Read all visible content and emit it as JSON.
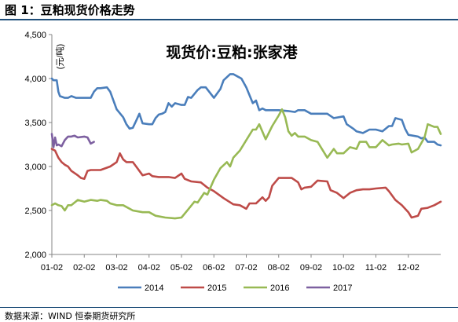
{
  "header": {
    "figure_title": "图 1：豆粕现货价格走势"
  },
  "footer": {
    "source": "数据来源：WIND 恒泰期货研究所"
  },
  "chart_data": {
    "type": "line",
    "title": "现货价:豆粕:张家港",
    "ylabel": "(元/吨)",
    "xlabel": "",
    "ylim": [
      2000,
      4500
    ],
    "yticks": [
      2000,
      2500,
      3000,
      3500,
      4000,
      4500
    ],
    "ytick_labels": [
      "2,000",
      "2,500",
      "3,000",
      "3,500",
      "4,000",
      "4,500"
    ],
    "xlim": [
      0,
      12
    ],
    "xticks": [
      0,
      1,
      2,
      3,
      4,
      5,
      6,
      7,
      8,
      9,
      10,
      11
    ],
    "xtick_labels": [
      "01-02",
      "02-02",
      "03-02",
      "04-02",
      "05-02",
      "06-02",
      "07-02",
      "08-02",
      "09-02",
      "10-02",
      "11-02",
      "12-02"
    ],
    "grid": false,
    "legend_position": "bottom",
    "series": [
      {
        "name": "2014",
        "color": "#4a7ebb",
        "x": [
          0,
          0.05,
          0.15,
          0.2,
          0.25,
          0.4,
          0.5,
          0.6,
          0.75,
          1.0,
          1.2,
          1.3,
          1.4,
          1.5,
          1.7,
          1.8,
          2.0,
          2.2,
          2.3,
          2.4,
          2.5,
          2.6,
          2.7,
          2.8,
          3.0,
          3.1,
          3.2,
          3.3,
          3.4,
          3.5,
          3.6,
          3.7,
          3.8,
          4.0,
          4.1,
          4.2,
          4.3,
          4.5,
          4.6,
          4.75,
          5.0,
          5.2,
          5.3,
          5.5,
          5.6,
          5.75,
          5.85,
          6.0,
          6.2,
          6.3,
          6.4,
          6.5,
          6.6,
          6.8,
          7.0,
          7.3,
          7.5,
          7.6,
          7.8,
          8.0,
          8.5,
          8.7,
          9.0,
          9.1,
          9.3,
          9.4,
          9.6,
          9.8,
          10.0,
          10.2,
          10.4,
          10.5,
          10.6,
          10.8,
          10.9,
          11.0,
          11.3,
          11.4,
          11.5,
          11.6,
          11.8,
          11.9,
          12.0
        ],
        "values": [
          4000,
          3980,
          3980,
          3850,
          3800,
          3780,
          3780,
          3800,
          3780,
          3780,
          3780,
          3850,
          3890,
          3890,
          3900,
          3850,
          3650,
          3560,
          3480,
          3430,
          3440,
          3520,
          3600,
          3490,
          3480,
          3480,
          3550,
          3590,
          3600,
          3620,
          3720,
          3680,
          3720,
          3700,
          3700,
          3790,
          3780,
          3870,
          3900,
          3900,
          3780,
          3880,
          3980,
          4050,
          4050,
          4020,
          4000,
          3900,
          3720,
          3750,
          3640,
          3660,
          3640,
          3640,
          3640,
          3630,
          3620,
          3640,
          3640,
          3600,
          3600,
          3550,
          3570,
          3480,
          3430,
          3400,
          3380,
          3420,
          3420,
          3400,
          3460,
          3460,
          3550,
          3530,
          3430,
          3360,
          3340,
          3320,
          3330,
          3280,
          3280,
          3250,
          3240
        ]
      },
      {
        "name": "2015",
        "color": "#be4b48",
        "x": [
          0,
          0.1,
          0.2,
          0.3,
          0.4,
          0.5,
          0.6,
          0.8,
          0.9,
          1.0,
          1.1,
          1.2,
          1.3,
          1.5,
          1.8,
          2.0,
          2.1,
          2.2,
          2.3,
          2.5,
          2.6,
          2.8,
          3.0,
          3.1,
          3.3,
          3.6,
          3.8,
          4.0,
          4.1,
          4.3,
          4.6,
          4.8,
          5.0,
          5.3,
          5.6,
          5.8,
          6.0,
          6.1,
          6.3,
          6.5,
          6.6,
          6.7,
          6.8,
          7.0,
          7.2,
          7.4,
          7.6,
          7.7,
          7.8,
          8.0,
          8.2,
          8.5,
          8.6,
          8.8,
          9.0,
          9.2,
          9.4,
          9.6,
          9.8,
          10.0,
          10.3,
          10.4,
          10.6,
          10.8,
          11.0,
          11.1,
          11.3,
          11.4,
          11.6,
          11.8,
          12.0
        ],
        "values": [
          3200,
          3180,
          3100,
          3050,
          3020,
          3000,
          2950,
          2900,
          2870,
          2860,
          2950,
          2960,
          2960,
          2960,
          3000,
          3050,
          3150,
          3080,
          3050,
          3050,
          3000,
          2900,
          2920,
          2890,
          2880,
          2880,
          2870,
          2920,
          2860,
          2830,
          2820,
          2760,
          2720,
          2640,
          2570,
          2560,
          2520,
          2580,
          2580,
          2650,
          2610,
          2650,
          2780,
          2870,
          2870,
          2870,
          2820,
          2740,
          2760,
          2770,
          2840,
          2830,
          2730,
          2700,
          2640,
          2700,
          2730,
          2740,
          2740,
          2750,
          2760,
          2720,
          2620,
          2560,
          2480,
          2420,
          2440,
          2520,
          2530,
          2560,
          2600
        ]
      },
      {
        "name": "2016",
        "color": "#98b954",
        "x": [
          0,
          0.1,
          0.2,
          0.3,
          0.4,
          0.5,
          0.6,
          0.8,
          1.0,
          1.2,
          1.4,
          1.5,
          1.7,
          1.8,
          2.0,
          2.2,
          2.5,
          2.8,
          3.0,
          3.2,
          3.5,
          3.8,
          4.0,
          4.2,
          4.4,
          4.5,
          4.7,
          4.8,
          5.0,
          5.2,
          5.4,
          5.5,
          5.6,
          5.8,
          6.0,
          6.2,
          6.3,
          6.4,
          6.6,
          6.8,
          7.0,
          7.1,
          7.2,
          7.3,
          7.4,
          7.5,
          7.6,
          7.8,
          8.0,
          8.2,
          8.5,
          8.7,
          8.8,
          9.0,
          9.2,
          9.4,
          9.5,
          9.7,
          9.8,
          10.0,
          10.2,
          10.4,
          10.5,
          10.7,
          10.8,
          11.0,
          11.1,
          11.3,
          11.5,
          11.6,
          11.8,
          11.9,
          12.0
        ],
        "values": [
          2560,
          2580,
          2560,
          2550,
          2500,
          2560,
          2560,
          2620,
          2600,
          2620,
          2610,
          2620,
          2610,
          2580,
          2560,
          2560,
          2500,
          2480,
          2480,
          2440,
          2420,
          2410,
          2420,
          2510,
          2600,
          2590,
          2700,
          2680,
          2850,
          2980,
          3050,
          3000,
          3100,
          3180,
          3300,
          3420,
          3420,
          3480,
          3310,
          3460,
          3580,
          3650,
          3560,
          3400,
          3350,
          3380,
          3340,
          3340,
          3300,
          3280,
          3100,
          3200,
          3150,
          3150,
          3220,
          3200,
          3280,
          3280,
          3220,
          3220,
          3300,
          3240,
          3250,
          3260,
          3250,
          3260,
          3160,
          3200,
          3330,
          3480,
          3450,
          3450,
          3370
        ]
      },
      {
        "name": "2017",
        "color": "#7d60a0",
        "x": [
          0,
          0.05,
          0.1,
          0.15,
          0.2,
          0.3,
          0.4,
          0.5,
          0.6,
          0.7,
          0.8,
          1.0,
          1.1,
          1.2,
          1.3
        ],
        "values": [
          3370,
          3220,
          3330,
          3240,
          3250,
          3230,
          3300,
          3340,
          3340,
          3350,
          3330,
          3340,
          3330,
          3260,
          3280
        ]
      }
    ]
  }
}
